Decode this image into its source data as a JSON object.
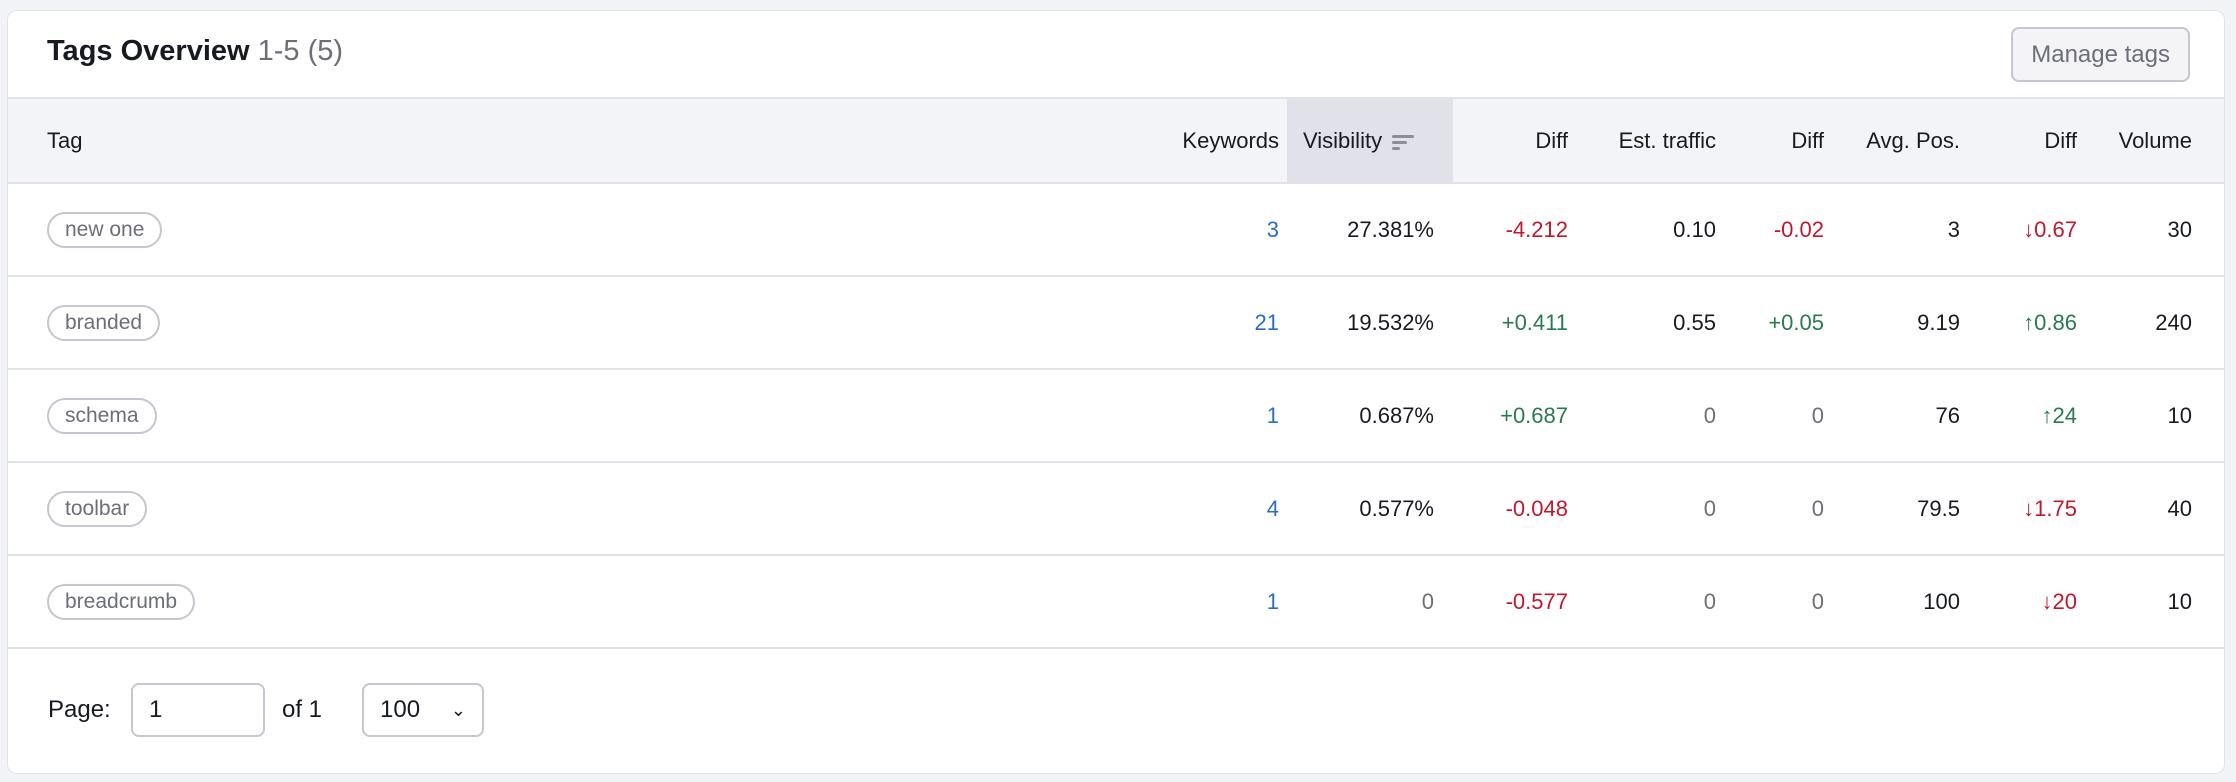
{
  "header": {
    "title": "Tags Overview",
    "count": "1-5 (5)",
    "manage_label": "Manage tags"
  },
  "columns": {
    "tag": "Tag",
    "keywords": "Keywords",
    "visibility": "Visibility",
    "vis_diff": "Diff",
    "traffic": "Est. traffic",
    "traffic_diff": "Diff",
    "avg_pos": "Avg. Pos.",
    "pos_diff": "Diff",
    "volume": "Volume"
  },
  "rows": [
    {
      "tag": "new one",
      "keywords": "3",
      "visibility": "27.381%",
      "vis_diff": "-4.212",
      "vis_diff_dir": "down",
      "traffic": "0.10",
      "traffic_diff": "-0.02",
      "traffic_diff_dir": "down",
      "avg_pos": "3",
      "pos_diff": "↓0.67",
      "pos_diff_dir": "down",
      "volume": "30"
    },
    {
      "tag": "branded",
      "keywords": "21",
      "visibility": "19.532%",
      "vis_diff": "+0.411",
      "vis_diff_dir": "up",
      "traffic": "0.55",
      "traffic_diff": "+0.05",
      "traffic_diff_dir": "up",
      "avg_pos": "9.19",
      "pos_diff": "↑0.86",
      "pos_diff_dir": "up",
      "volume": "240"
    },
    {
      "tag": "schema",
      "keywords": "1",
      "visibility": "0.687%",
      "vis_diff": "+0.687",
      "vis_diff_dir": "up",
      "traffic": "0",
      "traffic_diff": "0",
      "traffic_diff_dir": "none",
      "avg_pos": "76",
      "pos_diff": "↑24",
      "pos_diff_dir": "up",
      "volume": "10"
    },
    {
      "tag": "toolbar",
      "keywords": "4",
      "visibility": "0.577%",
      "vis_diff": "-0.048",
      "vis_diff_dir": "down",
      "traffic": "0",
      "traffic_diff": "0",
      "traffic_diff_dir": "none",
      "avg_pos": "79.5",
      "pos_diff": "↓1.75",
      "pos_diff_dir": "down",
      "volume": "40"
    },
    {
      "tag": "breadcrumb",
      "keywords": "1",
      "visibility": "0",
      "vis_diff": "-0.577",
      "vis_diff_dir": "down",
      "traffic": "0",
      "traffic_diff": "0",
      "traffic_diff_dir": "none",
      "avg_pos": "100",
      "pos_diff": "↓20",
      "pos_diff_dir": "down",
      "volume": "10"
    }
  ],
  "footer": {
    "page_label": "Page:",
    "page_value": "1",
    "of_label": "of 1",
    "per_page": "100"
  },
  "colors": {
    "link": "#2b6cc4",
    "negative": "#c0182e",
    "positive": "#2a7a50"
  }
}
